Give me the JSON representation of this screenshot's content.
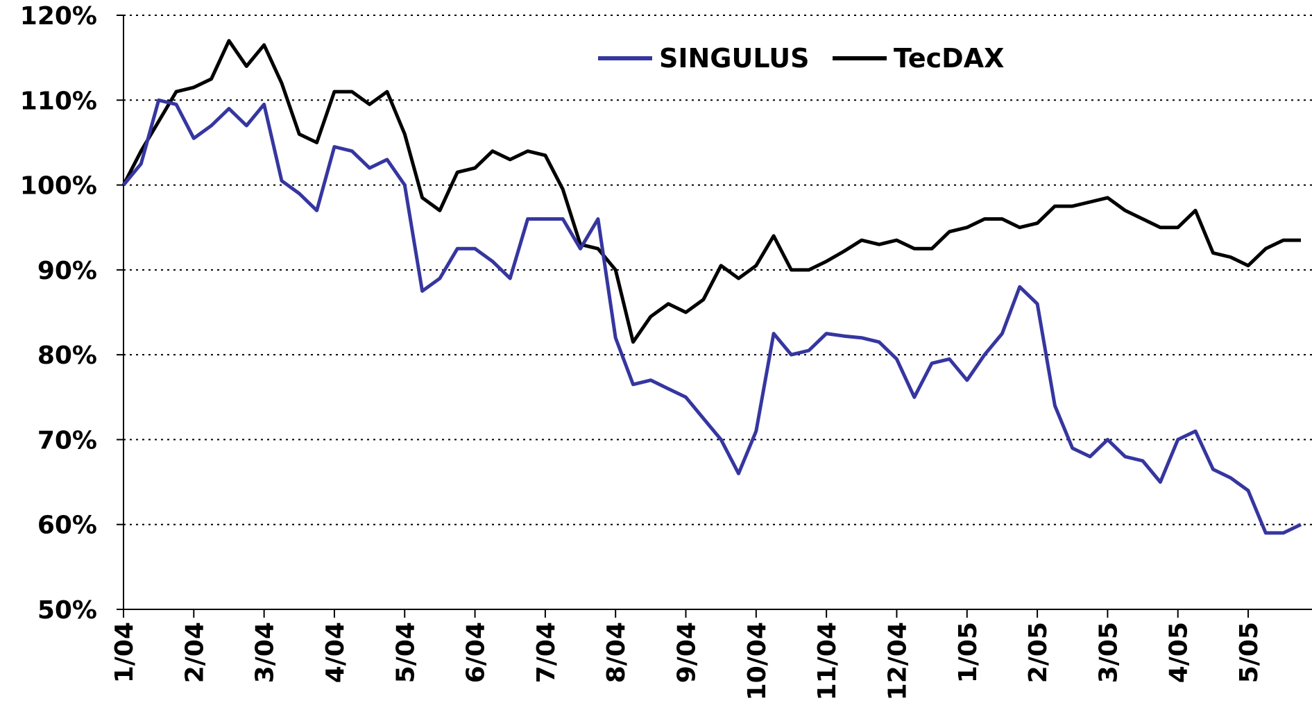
{
  "chart_data": {
    "type": "line",
    "x": [
      0,
      0.25,
      0.5,
      0.75,
      1,
      1.25,
      1.5,
      1.75,
      2,
      2.25,
      2.5,
      2.75,
      3,
      3.25,
      3.5,
      3.75,
      4,
      4.25,
      4.5,
      4.75,
      5,
      5.25,
      5.5,
      5.75,
      6,
      6.25,
      6.5,
      6.75,
      7,
      7.25,
      7.5,
      7.75,
      8,
      8.25,
      8.5,
      8.75,
      9,
      9.25,
      9.5,
      9.75,
      10,
      10.25,
      10.5,
      10.75,
      11,
      11.25,
      11.5,
      11.75,
      12,
      12.25,
      12.5,
      12.75,
      13,
      13.25,
      13.5,
      13.75,
      14,
      14.25,
      14.5,
      14.75,
      15,
      15.25,
      15.5,
      15.75,
      16,
      16.25,
      16.5,
      16.75
    ],
    "series": [
      {
        "name": "SINGULUS",
        "color": "#3636a0",
        "values": [
          100,
          102.5,
          110,
          109.5,
          105.5,
          107,
          109,
          107,
          109.5,
          100.5,
          99,
          97,
          104.5,
          104,
          102,
          103,
          100,
          87.5,
          89,
          92.5,
          92.5,
          91,
          89,
          96,
          96,
          96,
          92.5,
          96,
          82,
          76.5,
          77,
          76,
          75,
          72.5,
          70,
          66,
          71,
          82.5,
          80,
          80.5,
          82.5,
          82.2,
          82,
          81.5,
          79.5,
          75,
          79,
          79.5,
          77,
          80,
          82.5,
          88,
          86,
          74,
          69,
          68,
          70,
          68,
          67.5,
          65,
          70,
          71,
          66.5,
          65.5,
          64,
          59,
          59,
          60
        ]
      },
      {
        "name": "TecDAX",
        "color": "#000000",
        "values": [
          100,
          104,
          107.5,
          111,
          111.5,
          112.5,
          117,
          114,
          116.5,
          112,
          106,
          105,
          111,
          111,
          109.5,
          111,
          106,
          98.5,
          97,
          101.5,
          102,
          104,
          103,
          104,
          103.5,
          99.5,
          93,
          92.5,
          90,
          81.5,
          84.5,
          86,
          85,
          86.5,
          90.5,
          89,
          90.5,
          94,
          90,
          90,
          91,
          92.2,
          93.5,
          93,
          93.5,
          92.5,
          92.5,
          94.5,
          95,
          96,
          96,
          95,
          95.5,
          97.5,
          97.5,
          98,
          98.5,
          97,
          96,
          95,
          95,
          97,
          92,
          91.5,
          90.5,
          92.5,
          93.5,
          93.5
        ]
      }
    ],
    "xlim": [
      0,
      16.75
    ],
    "xticks": [
      {
        "value": 0,
        "label": "1/04"
      },
      {
        "value": 1,
        "label": "2/04"
      },
      {
        "value": 2,
        "label": "3/04"
      },
      {
        "value": 3,
        "label": "4/04"
      },
      {
        "value": 4,
        "label": "5/04"
      },
      {
        "value": 5,
        "label": "6/04"
      },
      {
        "value": 6,
        "label": "7/04"
      },
      {
        "value": 7,
        "label": "8/04"
      },
      {
        "value": 8,
        "label": "9/04"
      },
      {
        "value": 9,
        "label": "10/04"
      },
      {
        "value": 10,
        "label": "11/04"
      },
      {
        "value": 11,
        "label": "12/04"
      },
      {
        "value": 12,
        "label": "1/05"
      },
      {
        "value": 13,
        "label": "2/05"
      },
      {
        "value": 14,
        "label": "3/05"
      },
      {
        "value": 15,
        "label": "4/05"
      },
      {
        "value": 16,
        "label": "5/05"
      }
    ],
    "ylim": [
      50,
      120
    ],
    "yticks": [
      {
        "value": 50,
        "label": "50%"
      },
      {
        "value": 60,
        "label": "60%"
      },
      {
        "value": 70,
        "label": "70%"
      },
      {
        "value": 80,
        "label": "80%"
      },
      {
        "value": 90,
        "label": "90%"
      },
      {
        "value": 100,
        "label": "100%"
      },
      {
        "value": 110,
        "label": "110%"
      },
      {
        "value": 120,
        "label": "120%"
      }
    ],
    "grid": true,
    "legend": "top"
  }
}
